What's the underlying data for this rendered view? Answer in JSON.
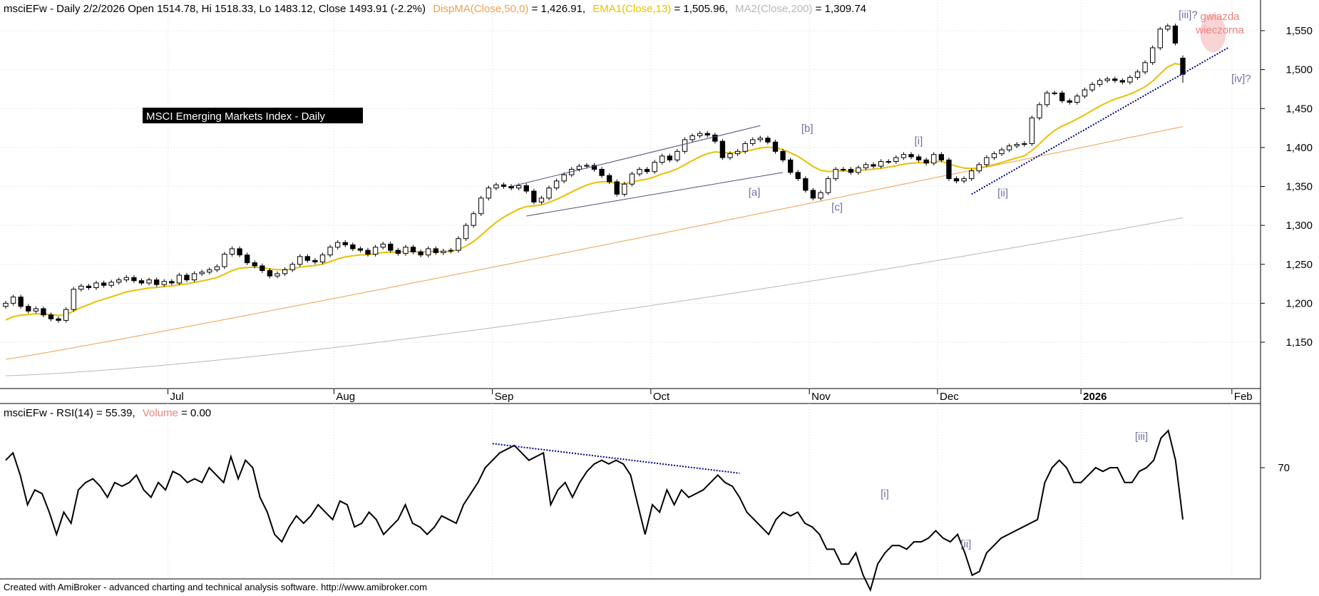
{
  "header": {
    "symbol": "msciEFw",
    "price_text": "msciEFw - Daily 2/2/2026 Open 1514.78, Hi 1518.33, Lo 1483.12, Close 1493.91 (-2.2%)",
    "dispma_label": "DispMA(Close,50,0)",
    "dispma_value": " = 1,426.91,",
    "ema_label": "EMA1(Close,13)",
    "ema_value": " = 1,505.96,",
    "ma_label": "MA2(Close,200)",
    "ma_value": " = 1,309.74"
  },
  "rsi_header": {
    "text": "msciEFw - RSI(14) = 55.39,",
    "volume_label": "Volume",
    "volume_value": " = 0.00"
  },
  "title_box": "MSCI Emerging Markets Index - Daily",
  "footer": "Created with AmiBroker - advanced charting and technical analysis software. http://www.amibroker.com",
  "colors": {
    "candle": "#000000",
    "ema": "#e8c000",
    "dispma": "#f0a050",
    "ma200": "#b8b8b8",
    "trendline": "#00008b",
    "channel": "#505080",
    "wave_label": "#7070a0",
    "star_label": "#f08080",
    "star_circle": "#f4b8b8",
    "grid": "#d8d8d8"
  },
  "chart_data": [
    {
      "type": "candlestick",
      "title": "MSCI Emerging Markets Index - Daily",
      "x_ticks": [
        "Jul",
        "Aug",
        "Sep",
        "Oct",
        "Nov",
        "Dec",
        "2026",
        "Feb"
      ],
      "y_ticks": [
        1150,
        1200,
        1250,
        1300,
        1350,
        1400,
        1450,
        1500,
        1550
      ],
      "y_tick_labels": [
        "1,150",
        "1,200",
        "1,250",
        "1,300",
        "1,350",
        "1,400",
        "1,450",
        "1,500",
        "1,550"
      ],
      "ylim": [
        1100,
        1590
      ],
      "grid": true,
      "last_bar": {
        "date": "2/2/2026",
        "open": 1514.78,
        "high": 1518.33,
        "low": 1483.12,
        "close": 1493.91,
        "change_pct": -2.2
      },
      "close": [
        1200,
        1208,
        1196,
        1190,
        1193,
        1185,
        1180,
        1178,
        1192,
        1218,
        1222,
        1220,
        1226,
        1223,
        1227,
        1230,
        1233,
        1229,
        1226,
        1230,
        1224,
        1228,
        1226,
        1236,
        1230,
        1238,
        1240,
        1243,
        1247,
        1263,
        1270,
        1262,
        1252,
        1248,
        1242,
        1235,
        1238,
        1243,
        1250,
        1260,
        1255,
        1253,
        1262,
        1272,
        1278,
        1275,
        1270,
        1268,
        1263,
        1272,
        1276,
        1268,
        1264,
        1272,
        1266,
        1262,
        1270,
        1265,
        1267,
        1268,
        1283,
        1300,
        1315,
        1335,
        1348,
        1352,
        1350,
        1348,
        1351,
        1344,
        1330,
        1335,
        1348,
        1357,
        1365,
        1372,
        1376,
        1377,
        1372,
        1364,
        1356,
        1340,
        1353,
        1366,
        1372,
        1369,
        1381,
        1389,
        1384,
        1395,
        1410,
        1415,
        1418,
        1416,
        1408,
        1387,
        1392,
        1395,
        1405,
        1410,
        1412,
        1407,
        1395,
        1384,
        1368,
        1360,
        1345,
        1335,
        1342,
        1360,
        1372,
        1372,
        1368,
        1374,
        1378,
        1376,
        1382,
        1382,
        1387,
        1391,
        1388,
        1384,
        1380,
        1391,
        1384,
        1360,
        1357,
        1360,
        1370,
        1378,
        1387,
        1392,
        1397,
        1402,
        1404,
        1405,
        1438,
        1455,
        1470,
        1470,
        1460,
        1458,
        1466,
        1474,
        1481,
        1486,
        1488,
        1486,
        1484,
        1490,
        1497,
        1509,
        1528,
        1552,
        1556,
        1534,
        1493.91
      ],
      "ema13_end": 1505.96,
      "dispma50_end": 1426.91,
      "ma200_end": 1309.74,
      "wave_labels": [
        "[a]",
        "[b]",
        "[c]",
        "[i]",
        "[ii]",
        "[iii]?",
        "[iv]?"
      ],
      "annotation": "gwiazda wieczorna"
    },
    {
      "type": "line",
      "title": "msciEFw - RSI(14)",
      "y_ticks": [
        70
      ],
      "rsi_end": 55.39,
      "wave_labels": [
        "[i]",
        "[ii]",
        "[iii]"
      ],
      "values": [
        72,
        74,
        68,
        60,
        64,
        63,
        58,
        52,
        58,
        55,
        64,
        66,
        67,
        65,
        62,
        66,
        65,
        66,
        68,
        64,
        62,
        66,
        64,
        69,
        68,
        66,
        67,
        66,
        70,
        68,
        66,
        73,
        67,
        72,
        70,
        62,
        58,
        52,
        50,
        54,
        57,
        55,
        57,
        60,
        58,
        56,
        61,
        60,
        54,
        55,
        58,
        56,
        52,
        54,
        56,
        60,
        55,
        54,
        52,
        54,
        57,
        56,
        55,
        60,
        63,
        66,
        70,
        72,
        74,
        75,
        76,
        74,
        72,
        73,
        74,
        60,
        64,
        66,
        62,
        66,
        69,
        71,
        72,
        71,
        72,
        71,
        68,
        60,
        52,
        60,
        58,
        64,
        60,
        64,
        62,
        63,
        64,
        66,
        68,
        66,
        65,
        62,
        58,
        56,
        54,
        52,
        56,
        58,
        57,
        58,
        55,
        54,
        52,
        48,
        48,
        44,
        44,
        47,
        41,
        37,
        44,
        47,
        49,
        49,
        48,
        50,
        50,
        51,
        53,
        51,
        50,
        52,
        47,
        41,
        42,
        47,
        49,
        51,
        52,
        53,
        54,
        55,
        56,
        66,
        70,
        72,
        70,
        66,
        66,
        68,
        70,
        69,
        70,
        70,
        66,
        66,
        69,
        70,
        72,
        78,
        80,
        72,
        56
      ]
    }
  ]
}
